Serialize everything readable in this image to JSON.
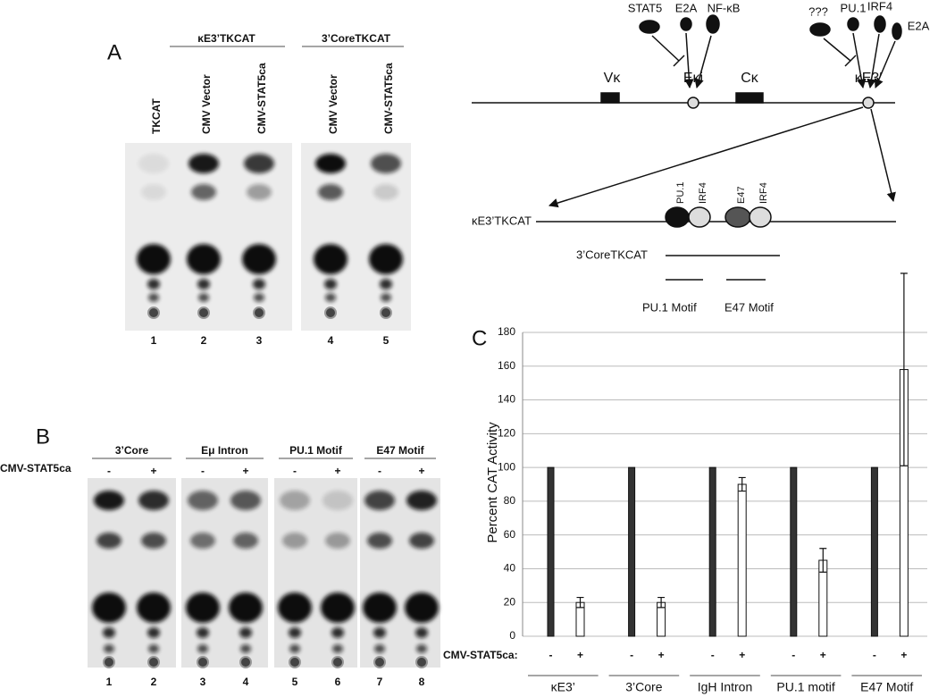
{
  "panel_a": {
    "label": "A",
    "groups": [
      "κE3’TKCAT",
      "3’CoreTKCAT"
    ],
    "lanes": [
      "TKCAT",
      "CMV Vector",
      "CMV-STAT5ca",
      "CMV Vector",
      "CMV-STAT5ca"
    ],
    "lane_numbers": [
      "1",
      "2",
      "3",
      "4",
      "5"
    ]
  },
  "diagram": {
    "factors_eki": [
      "STAT5",
      "E2A",
      "NF-κB"
    ],
    "factors_ke3": [
      "???",
      "PU.1",
      "IRF4",
      "E2A"
    ],
    "elements": [
      "Vκ",
      "Eκi",
      "Cκ",
      "κE3′"
    ],
    "construct": "κE3’TKCAT",
    "sites": [
      "PU.1",
      "IRF4",
      "E47",
      "IRF4"
    ],
    "core_construct": "3’CoreTKCAT",
    "motifs": [
      "PU.1 Motif",
      "E47 Motif"
    ]
  },
  "panel_b": {
    "label": "B",
    "row_label": "CMV-STAT5ca",
    "signs": [
      "-",
      "+"
    ],
    "groups": [
      "3’Core",
      "Eμ Intron",
      "PU.1 Motif",
      "E47 Motif"
    ],
    "lane_numbers": [
      "1",
      "2",
      "3",
      "4",
      "5",
      "6",
      "7",
      "8"
    ]
  },
  "chart_data": {
    "type": "bar",
    "label": "C",
    "y_label": "Percent CAT Activity",
    "categories": [
      "κE3’",
      "3’Core",
      "IgH Intron",
      "PU.1 motif",
      "E47 Motif"
    ],
    "row_label": "CMV-STAT5ca:",
    "signs": [
      "-",
      "+"
    ],
    "series": [
      {
        "color": "#333333",
        "values": [
          100,
          100,
          100,
          100,
          100
        ]
      },
      {
        "color": "#ffffff",
        "values": [
          20,
          20,
          90,
          45,
          158
        ],
        "errors": [
          3,
          3,
          4,
          7,
          57
        ]
      }
    ],
    "ylim": [
      0,
      180
    ],
    "yticks": [
      0,
      20,
      40,
      60,
      80,
      100,
      120,
      140,
      160,
      180
    ],
    "grid": true
  }
}
